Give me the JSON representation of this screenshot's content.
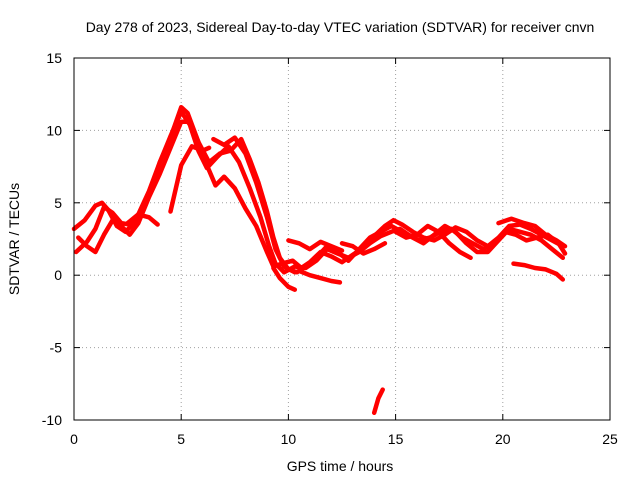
{
  "chart_data": {
    "type": "scatter",
    "title": "Day 278 of 2023, Sidereal Day-to-day VTEC variation (SDTVAR) for receiver cnvn",
    "xlabel": "GPS time / hours",
    "ylabel": "SDTVAR / TECUs",
    "xlim": [
      0,
      25
    ],
    "ylim": [
      -10,
      15
    ],
    "xticks": [
      0,
      5,
      10,
      15,
      20,
      25
    ],
    "yticks": [
      -10,
      -5,
      0,
      5,
      10,
      15
    ],
    "xtick_labels": [
      "0",
      "5",
      "10",
      "15",
      "20",
      "25"
    ],
    "ytick_labels": [
      "-10",
      "-5",
      "0",
      "5",
      "10",
      "15"
    ],
    "grid": true,
    "color": "#ff0000",
    "series": [
      {
        "name": "track-1",
        "points": [
          [
            0.0,
            3.2
          ],
          [
            0.5,
            3.8
          ],
          [
            1.0,
            4.8
          ],
          [
            1.3,
            5.0
          ],
          [
            1.6,
            4.5
          ],
          [
            2.0,
            3.4
          ],
          [
            2.4,
            3.0
          ],
          [
            2.8,
            3.6
          ],
          [
            3.2,
            4.5
          ],
          [
            3.6,
            6.0
          ],
          [
            4.0,
            7.8
          ],
          [
            4.5,
            9.5
          ],
          [
            5.0,
            11.6
          ],
          [
            5.3,
            11.2
          ],
          [
            5.7,
            9.6
          ],
          [
            6.2,
            7.6
          ],
          [
            6.6,
            6.2
          ],
          [
            7.0,
            6.8
          ],
          [
            7.5,
            6.0
          ],
          [
            8.0,
            4.6
          ],
          [
            8.5,
            3.4
          ],
          [
            9.0,
            1.6
          ],
          [
            9.3,
            0.6
          ],
          [
            9.7,
            0.8
          ],
          [
            10.2,
            1.0
          ],
          [
            10.6,
            0.5
          ],
          [
            11.0,
            0.9
          ],
          [
            11.5,
            1.6
          ],
          [
            12.0,
            1.3
          ],
          [
            12.5,
            0.9
          ],
          [
            13.0,
            1.4
          ],
          [
            13.5,
            1.9
          ],
          [
            14.0,
            2.7
          ],
          [
            14.5,
            3.4
          ],
          [
            14.9,
            3.8
          ],
          [
            15.3,
            3.5
          ],
          [
            15.8,
            3.0
          ],
          [
            16.3,
            2.6
          ],
          [
            16.8,
            2.4
          ],
          [
            17.3,
            2.8
          ],
          [
            17.8,
            3.3
          ],
          [
            18.3,
            3.0
          ],
          [
            18.8,
            2.4
          ],
          [
            19.3,
            2.0
          ],
          [
            19.8,
            2.6
          ],
          [
            20.3,
            3.4
          ],
          [
            20.8,
            3.5
          ],
          [
            21.3,
            3.2
          ],
          [
            21.8,
            2.8
          ],
          [
            22.3,
            2.4
          ],
          [
            22.8,
            2.0
          ]
        ]
      },
      {
        "name": "track-2",
        "points": [
          [
            0.1,
            1.6
          ],
          [
            0.6,
            2.3
          ],
          [
            1.0,
            3.2
          ],
          [
            1.4,
            4.7
          ],
          [
            1.8,
            4.3
          ],
          [
            2.2,
            3.6
          ],
          [
            2.6,
            3.5
          ],
          [
            3.0,
            4.2
          ],
          [
            3.5,
            5.8
          ],
          [
            4.0,
            7.8
          ],
          [
            4.5,
            9.6
          ],
          [
            5.0,
            11.3
          ],
          [
            5.4,
            10.4
          ],
          [
            5.8,
            8.6
          ],
          [
            6.2,
            7.4
          ],
          [
            6.7,
            8.2
          ],
          [
            7.2,
            8.9
          ],
          [
            7.7,
            7.8
          ],
          [
            8.2,
            6.0
          ],
          [
            8.7,
            4.0
          ],
          [
            9.1,
            2.0
          ],
          [
            9.4,
            0.8
          ],
          [
            9.8,
            0.2
          ],
          [
            10.3,
            0.6
          ],
          [
            10.8,
            0.5
          ],
          [
            11.3,
            1.0
          ],
          [
            11.8,
            1.8
          ],
          [
            12.3,
            1.5
          ],
          [
            12.8,
            1.2
          ],
          [
            13.3,
            1.6
          ],
          [
            13.8,
            2.2
          ],
          [
            14.3,
            2.7
          ],
          [
            14.8,
            3.0
          ],
          [
            15.2,
            3.2
          ],
          [
            15.6,
            2.8
          ],
          [
            16.1,
            2.4
          ],
          [
            16.6,
            2.6
          ],
          [
            17.1,
            3.0
          ],
          [
            17.6,
            3.2
          ],
          [
            18.1,
            2.6
          ],
          [
            18.6,
            2.2
          ],
          [
            19.1,
            1.8
          ],
          [
            19.6,
            2.2
          ],
          [
            20.1,
            3.0
          ],
          [
            20.6,
            2.8
          ],
          [
            21.1,
            2.4
          ],
          [
            21.6,
            2.6
          ],
          [
            22.1,
            2.8
          ],
          [
            22.6,
            2.2
          ],
          [
            22.9,
            1.5
          ]
        ]
      },
      {
        "name": "track-3",
        "points": [
          [
            0.2,
            2.6
          ],
          [
            0.6,
            2.0
          ],
          [
            1.0,
            1.6
          ],
          [
            1.4,
            2.8
          ],
          [
            1.8,
            3.8
          ],
          [
            2.2,
            3.4
          ],
          [
            2.6,
            2.8
          ],
          [
            3.0,
            3.6
          ],
          [
            3.5,
            5.4
          ],
          [
            4.0,
            7.0
          ],
          [
            4.5,
            8.8
          ],
          [
            5.0,
            10.6
          ],
          [
            5.4,
            10.6
          ],
          [
            5.8,
            9.2
          ],
          [
            6.3,
            7.8
          ],
          [
            6.8,
            8.4
          ],
          [
            7.3,
            8.6
          ],
          [
            7.8,
            9.4
          ],
          [
            8.2,
            8.0
          ],
          [
            8.6,
            6.4
          ],
          [
            9.0,
            4.4
          ],
          [
            9.3,
            2.6
          ],
          [
            9.6,
            1.2
          ],
          [
            10.0,
            0.4
          ],
          [
            10.4,
            0.2
          ],
          [
            10.8,
            0.6
          ],
          [
            11.3,
            1.2
          ],
          [
            11.8,
            2.0
          ],
          [
            12.3,
            1.6
          ],
          [
            12.8,
            1.0
          ],
          [
            13.3,
            1.8
          ],
          [
            13.8,
            2.6
          ],
          [
            14.3,
            3.0
          ],
          [
            14.8,
            3.4
          ],
          [
            15.3,
            3.0
          ],
          [
            15.8,
            2.6
          ],
          [
            16.3,
            2.2
          ],
          [
            16.8,
            2.8
          ],
          [
            17.3,
            3.4
          ],
          [
            17.8,
            3.0
          ],
          [
            18.3,
            2.2
          ],
          [
            18.8,
            1.6
          ],
          [
            19.3,
            1.6
          ],
          [
            19.8,
            2.4
          ],
          [
            20.3,
            3.2
          ],
          [
            20.8,
            3.0
          ],
          [
            21.3,
            2.8
          ],
          [
            21.8,
            2.4
          ],
          [
            22.3,
            1.8
          ],
          [
            22.8,
            1.2
          ]
        ]
      },
      {
        "name": "track-4",
        "points": [
          [
            2.5,
            3.6
          ],
          [
            3.0,
            4.2
          ],
          [
            3.5,
            4.0
          ],
          [
            3.9,
            3.5
          ]
        ]
      },
      {
        "name": "track-5",
        "points": [
          [
            4.5,
            4.4
          ],
          [
            5.0,
            7.6
          ],
          [
            5.5,
            8.9
          ],
          [
            6.0,
            8.6
          ],
          [
            6.3,
            8.8
          ]
        ]
      },
      {
        "name": "track-6",
        "points": [
          [
            6.5,
            9.4
          ],
          [
            7.0,
            9.0
          ],
          [
            7.5,
            9.5
          ],
          [
            8.0,
            8.4
          ],
          [
            8.5,
            6.4
          ],
          [
            9.0,
            4.0
          ],
          [
            9.4,
            1.8
          ],
          [
            9.8,
            0.6
          ],
          [
            10.3,
            0.2
          ]
        ]
      },
      {
        "name": "track-7",
        "points": [
          [
            9.3,
            0.5
          ],
          [
            9.6,
            -0.2
          ],
          [
            10.0,
            -0.8
          ],
          [
            10.3,
            -1.0
          ]
        ]
      },
      {
        "name": "track-8",
        "points": [
          [
            10.0,
            2.4
          ],
          [
            10.5,
            2.2
          ],
          [
            11.0,
            1.8
          ],
          [
            11.5,
            2.3
          ],
          [
            12.0,
            2.0
          ],
          [
            12.5,
            1.7
          ]
        ]
      },
      {
        "name": "track-9",
        "points": [
          [
            10.5,
            0.3
          ],
          [
            11.0,
            0.0
          ],
          [
            11.5,
            -0.2
          ],
          [
            12.0,
            -0.4
          ],
          [
            12.4,
            -0.5
          ]
        ]
      },
      {
        "name": "track-10",
        "points": [
          [
            12.5,
            2.2
          ],
          [
            13.0,
            2.0
          ],
          [
            13.5,
            1.5
          ],
          [
            14.0,
            1.8
          ],
          [
            14.5,
            2.2
          ]
        ]
      },
      {
        "name": "track-11",
        "points": [
          [
            15.0,
            3.0
          ],
          [
            15.5,
            2.6
          ],
          [
            16.0,
            2.8
          ],
          [
            16.5,
            3.4
          ],
          [
            17.0,
            3.0
          ],
          [
            17.5,
            2.2
          ],
          [
            18.0,
            1.6
          ],
          [
            18.5,
            1.2
          ]
        ]
      },
      {
        "name": "track-12",
        "points": [
          [
            20.5,
            0.8
          ],
          [
            21.0,
            0.7
          ],
          [
            21.5,
            0.5
          ],
          [
            22.0,
            0.4
          ],
          [
            22.5,
            0.1
          ],
          [
            22.8,
            -0.3
          ]
        ]
      },
      {
        "name": "track-13",
        "points": [
          [
            19.8,
            3.6
          ],
          [
            20.4,
            3.9
          ],
          [
            21.0,
            3.6
          ],
          [
            21.5,
            3.4
          ],
          [
            22.0,
            2.8
          ],
          [
            22.5,
            2.4
          ],
          [
            22.9,
            2.0
          ]
        ]
      },
      {
        "name": "track-14",
        "points": [
          [
            14.0,
            -9.5
          ],
          [
            14.2,
            -8.5
          ],
          [
            14.4,
            -7.9
          ]
        ]
      }
    ]
  }
}
